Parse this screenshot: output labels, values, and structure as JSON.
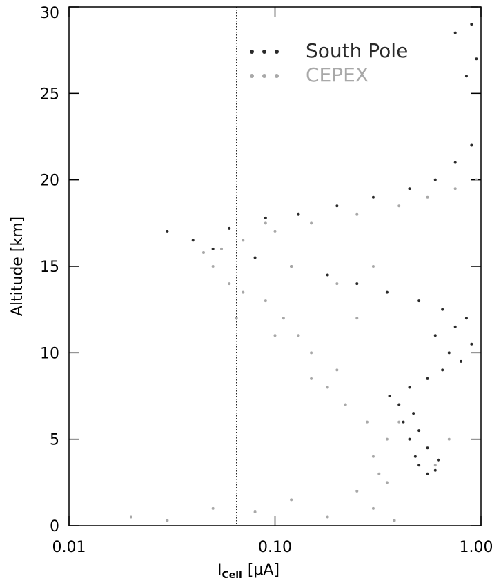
{
  "chart_data": {
    "type": "scatter",
    "xlabel": {
      "main": "I",
      "sub": "Cell",
      "unit": "[μA]"
    },
    "ylabel": "Altitude [km]",
    "xscale": "log",
    "xlim": [
      0.01,
      1.0
    ],
    "xticks": [
      0.01,
      {
        "value": 0.1,
        "label": "0.10"
      },
      {
        "value": 1.0,
        "label": "1.00"
      }
    ],
    "ylim": [
      0,
      30
    ],
    "yticks": [
      0,
      5,
      10,
      15,
      20,
      25,
      30
    ],
    "reference_x": 0.065,
    "legend": "upper right",
    "series": [
      {
        "name": "South Pole",
        "color": "#2a2a2a",
        "x": [
          0.55,
          0.6,
          0.5,
          0.62,
          0.48,
          0.55,
          0.45,
          0.5,
          0.42,
          0.47,
          0.4,
          0.36,
          0.45,
          0.55,
          0.65,
          0.8,
          0.7,
          0.9,
          0.6,
          0.75,
          0.85,
          0.65,
          0.5,
          0.35,
          0.25,
          0.18,
          0.12,
          0.08,
          0.05,
          0.04,
          0.03,
          0.06,
          0.09,
          0.13,
          0.2,
          0.3,
          0.45,
          0.6,
          0.75,
          0.9,
          0.85,
          0.95,
          0.75,
          0.9,
          0.98
        ],
        "values": [
          3,
          3.2,
          3.5,
          3.8,
          4,
          4.5,
          5,
          5.5,
          6,
          6.5,
          7,
          7.5,
          8,
          8.5,
          9,
          9.5,
          10,
          10.5,
          11,
          11.5,
          12,
          12.5,
          13,
          13.5,
          14,
          14.5,
          15,
          15.5,
          16,
          16.5,
          17,
          17.2,
          17.8,
          18,
          18.5,
          19,
          19.5,
          20,
          21,
          22,
          26,
          27,
          28.5,
          29,
          30
        ]
      },
      {
        "name": "CEPEX",
        "color": "#a8a8a8",
        "x": [
          0.02,
          0.03,
          0.05,
          0.08,
          0.12,
          0.18,
          0.25,
          0.3,
          0.38,
          0.35,
          0.32,
          0.3,
          0.35,
          0.28,
          0.22,
          0.18,
          0.2,
          0.15,
          0.13,
          0.11,
          0.09,
          0.07,
          0.06,
          0.05,
          0.055,
          0.07,
          0.1,
          0.15,
          0.25,
          0.4,
          0.55,
          0.75,
          0.95,
          0.12,
          0.2,
          0.3,
          0.25,
          0.15,
          0.4,
          0.6,
          0.7,
          0.09,
          0.045,
          0.065,
          0.1
        ],
        "values": [
          0.5,
          0.3,
          1,
          0.8,
          1.5,
          0.5,
          2,
          1,
          0.3,
          2.5,
          3,
          4,
          5,
          6,
          7,
          8,
          9,
          10,
          11,
          12,
          13,
          13.5,
          14,
          15,
          16,
          16.5,
          17,
          17.5,
          18,
          18.5,
          19,
          19.5,
          20,
          15,
          14,
          15,
          12,
          8.5,
          6,
          3.5,
          5,
          17.5,
          15.8,
          12,
          11
        ]
      }
    ]
  }
}
